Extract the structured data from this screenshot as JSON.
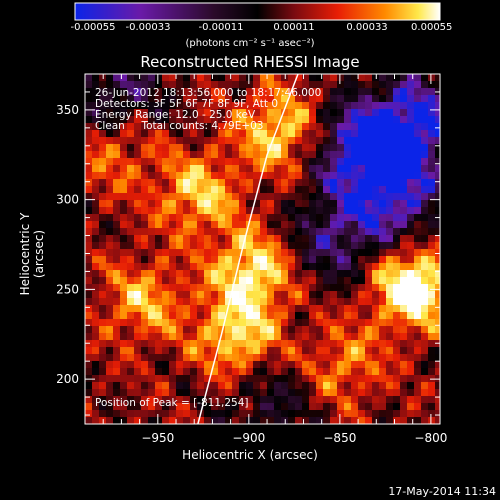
{
  "colorbar": {
    "ticks": [
      "-0.00055",
      "-0.00033",
      "-0.00011",
      "0.00011",
      "0.00033",
      "0.00055"
    ],
    "units": "(photons cm⁻² s⁻¹ asec⁻²)",
    "colors": [
      "#0b24e8",
      "#6a1aa8",
      "#2b0a2a",
      "#000000",
      "#7a0a10",
      "#e81e05",
      "#ff8a00",
      "#ffe84a",
      "#ffffff"
    ]
  },
  "title": "Reconstructed RHESSI Image",
  "info_lines": [
    "26-Jun-2012 18:13:56.000 to 18:17:46.000",
    "Detectors: 3F 5F 6F 7F 8F 9F, Att 0",
    "Energy Range: 12.0 - 25.0 keV",
    "Clean     Total counts: 4.79E+03"
  ],
  "peak_label": "Position of Peak = [-811,254]",
  "datestamp": "17-May-2014 11:34",
  "chart_data": {
    "type": "heatmap",
    "title": "Reconstructed RHESSI Image",
    "xlabel": "Heliocentric X (arcsec)",
    "ylabel": "Heliocentric Y (arcsec)",
    "xlim": [
      -990,
      -795
    ],
    "ylim": [
      175,
      370
    ],
    "x_ticks": [
      -950,
      -900,
      -850,
      -800
    ],
    "y_ticks": [
      200,
      250,
      300,
      350
    ],
    "colorbar_range": [
      -0.00055,
      0.00055
    ],
    "peak": [
      -811,
      254
    ],
    "limb_curve": [
      [
        -928,
        175
      ],
      [
        -915,
        225
      ],
      [
        -903,
        275
      ],
      [
        -890,
        325
      ],
      [
        -873,
        370
      ]
    ]
  }
}
